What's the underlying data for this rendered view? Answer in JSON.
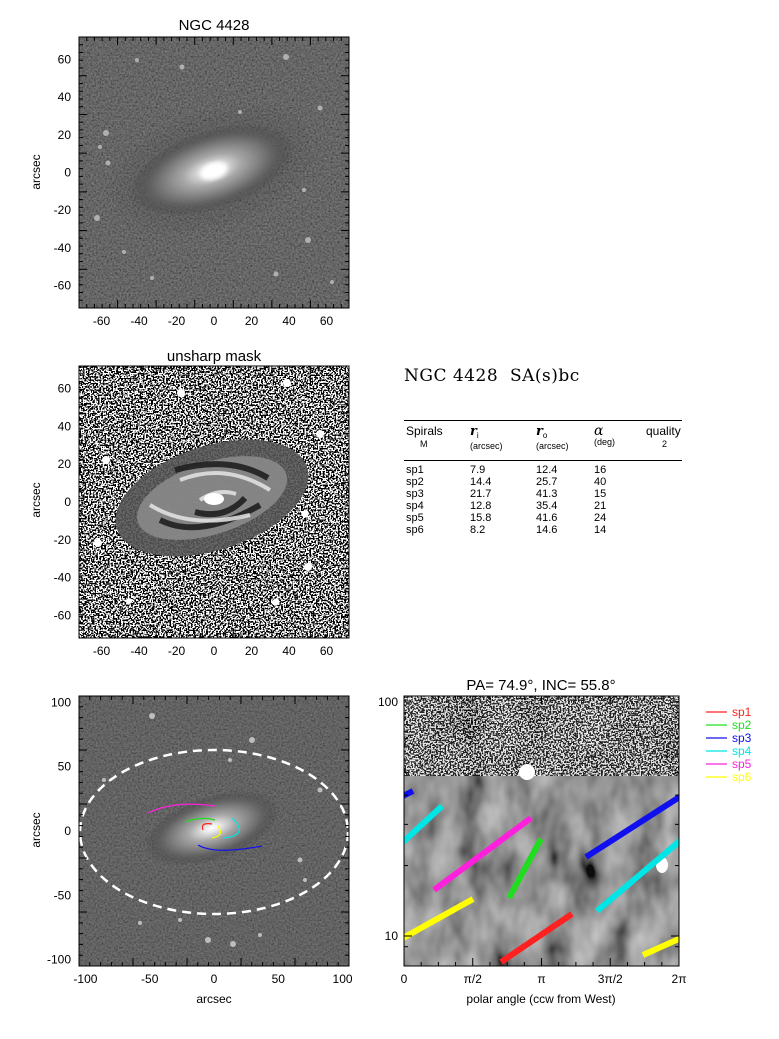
{
  "panels": {
    "top": {
      "title": "NGC 4428",
      "ylabel": "arcsec",
      "ticks": [
        "-60",
        "-40",
        "-20",
        "0",
        "20",
        "40",
        "60"
      ]
    },
    "middle": {
      "title": "unsharp mask",
      "ylabel": "arcsec",
      "ticks": [
        "-60",
        "-40",
        "-20",
        "0",
        "20",
        "40",
        "60"
      ]
    },
    "bottom_left": {
      "xlabel": "arcsec",
      "ylabel": "arcsec",
      "xticks": [
        "-100",
        "-50",
        "0",
        "50",
        "100"
      ],
      "yticks": [
        "100",
        "50",
        "0",
        "-50",
        "-100"
      ]
    },
    "bottom_right": {
      "title": "PA=  74.9°, INC=  55.8°",
      "xlabel": "polar angle (ccw from West)",
      "xticks": [
        "0",
        "π/2",
        "π",
        "3π/2",
        "2π"
      ],
      "yticks": [
        "100",
        "10"
      ]
    }
  },
  "galaxy": {
    "name": "NGC 4428",
    "type": "SA(s)bc"
  },
  "table": {
    "headers": [
      {
        "main": "Spirals",
        "sub": "M"
      },
      {
        "main": "r",
        "sub_index": "i",
        "sub": "(arcsec)"
      },
      {
        "main": "r",
        "sub_index": "o",
        "sub": "(arcsec)"
      },
      {
        "main": "α",
        "sub": "(deg)"
      },
      {
        "main": "quality",
        "sub": "2"
      }
    ],
    "rows": [
      [
        "sp1",
        "7.9",
        "12.4",
        "16"
      ],
      [
        "sp2",
        "14.4",
        "25.7",
        "40"
      ],
      [
        "sp3",
        "21.7",
        "41.3",
        "15"
      ],
      [
        "sp4",
        "12.8",
        "35.4",
        "21"
      ],
      [
        "sp5",
        "15.8",
        "41.6",
        "24"
      ],
      [
        "sp6",
        "8.2",
        "14.6",
        "14"
      ]
    ]
  },
  "legend": [
    {
      "name": "sp1",
      "color": "#ff2020"
    },
    {
      "name": "sp2",
      "color": "#20dd20"
    },
    {
      "name": "sp3",
      "color": "#1010ee"
    },
    {
      "name": "sp4",
      "color": "#00e5e5"
    },
    {
      "name": "sp5",
      "color": "#ff20dd"
    },
    {
      "name": "sp6",
      "color": "#ffff00"
    }
  ]
}
